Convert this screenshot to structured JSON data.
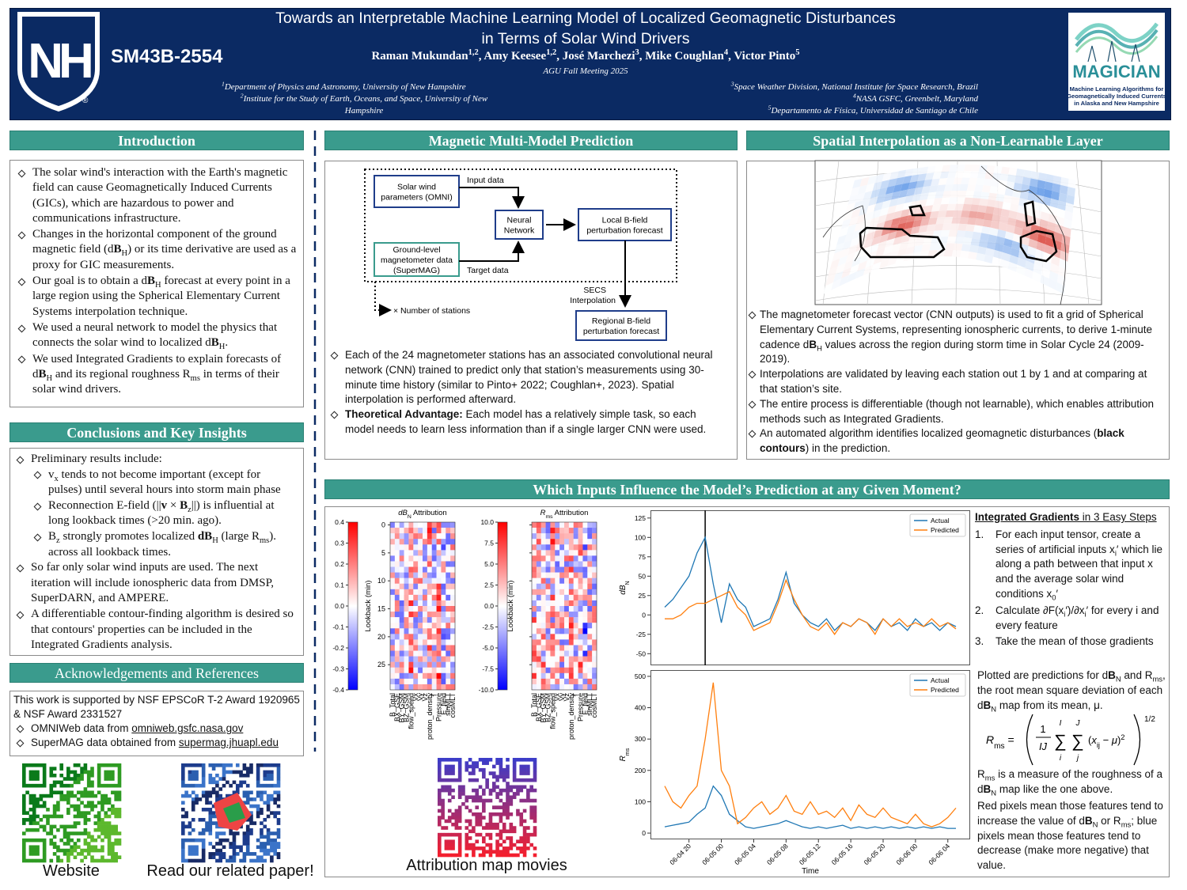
{
  "header": {
    "unh_logo": {
      "text": "NH",
      "mark": "®"
    },
    "code": "SM43B-2554",
    "title": [
      "Towards an Interpretable Machine Learning Model of Localized Geomagnetic Disturbances",
      "in Terms of Solar Wind Drivers"
    ],
    "authors": [
      "Raman Mukundan",
      {
        "sup": "1,2"
      },
      ", Amy Keesee",
      {
        "sup": "1,2"
      },
      ", José Marchezi",
      {
        "sup": "3"
      },
      ", Mike Coughlan",
      {
        "sup": "4"
      },
      ", Victor Pinto",
      {
        "sup": "5"
      }
    ],
    "meeting": "AGU Fall Meeting 2025",
    "affiliations_left": [
      [
        {
          "sup": "1"
        },
        "Department of Physics and Astronomy, University of New Hampshire"
      ],
      [
        {
          "sup": "2"
        },
        "Institute for the Study of Earth, Oceans, and Space, University of New Hampshire"
      ]
    ],
    "affiliations_right": [
      [
        {
          "sup": "3"
        },
        "Space Weather Division, National Institute for Space Research, Brazil"
      ],
      [
        {
          "sup": "4"
        },
        "NASA GSFC, Greenbelt, Maryland"
      ],
      [
        {
          "sup": "5"
        },
        "Departamento de Física, Universidad de Santiago de Chile"
      ]
    ],
    "magician_logo": {
      "name": "MAGICIAN",
      "lines": [
        "Machine Learning Algorithms for",
        "Geomagnetically Induced Currents",
        "in Alaska and New Hampshire"
      ]
    }
  },
  "introduction": {
    "heading": "Introduction",
    "bullets": [
      [
        "The solar wind's interaction with the Earth's magnetic field can cause Geomagnetically Induced Currents (GICs), which are hazardous to power and communications infrastructure."
      ],
      [
        "Changes in the horizontal component of the ground magnetic field (d",
        {
          "b": "B"
        },
        {
          "sub": "H"
        },
        ") or its time derivative are used as a proxy for GIC measurements."
      ],
      [
        "Our goal is to obtain a d",
        {
          "b": "B"
        },
        {
          "sub": "H"
        },
        " forecast at every point in a large region using the Spherical Elementary Current Systems interpolation technique."
      ],
      [
        "We used a neural network to model the physics that connects the solar wind to localized d",
        {
          "b": "B"
        },
        {
          "sub": "H"
        },
        "."
      ],
      [
        "We used Integrated Gradients to explain forecasts of d",
        {
          "b": "B"
        },
        {
          "sub": "H"
        },
        " and its regional roughness R",
        {
          "sub": "ms"
        },
        " in terms of their solar wind drivers."
      ]
    ]
  },
  "conclusions": {
    "heading": "Conclusions and Key Insights",
    "bullets": [
      {
        "runs": [
          "Preliminary results include:"
        ],
        "items": [
          [
            "v",
            {
              "sub": "x"
            },
            " tends to not become important (except for pulses) until several hours into storm main phase"
          ],
          [
            "Reconnection E-field (||",
            {
              "b": "v"
            },
            " × ",
            {
              "b": "B"
            },
            {
              "sub": "z"
            },
            "||) is influential at long lookback times (>20 min. ago)."
          ],
          [
            "B",
            {
              "sub": "z"
            },
            " strongly promotes localized ",
            {
              "b": "dB"
            },
            {
              "sub": "H"
            },
            " (large R",
            {
              "sub": "ms"
            },
            "). across all lookback times."
          ]
        ]
      },
      [
        "So far only solar wind inputs are used. The next iteration will include ionospheric data from DMSP, SuperDARN, and AMPERE."
      ],
      [
        "A differentiable contour-finding algorithm is desired so that contours' properties can be included in the Integrated Gradients analysis."
      ]
    ]
  },
  "acknowledgements": {
    "heading": "Acknowledgements and References",
    "text": "This work is supported by NSF EPSCoR T-2 Award 1920965 & NSF Award 2331527",
    "bullets": [
      [
        "OMNIWeb data from ",
        {
          "u": "omniweb.gsfc.nasa.gov"
        }
      ],
      [
        "SuperMAG data obtained from ",
        {
          "u": "supermag.jhuapl.edu"
        }
      ]
    ]
  },
  "qr_captions": [
    "Website",
    "Read our related paper!",
    "Attribution map movies"
  ],
  "multi_model": {
    "heading": "Magnetic Multi-Model Prediction",
    "diagram": {
      "solar_wind": [
        "Solar wind",
        "parameters (OMNI)"
      ],
      "input_data": "Input data",
      "network": [
        "Neural",
        "Network"
      ],
      "local": [
        "Local B-field",
        "perturbation forecast"
      ],
      "ground": [
        "Ground-level",
        "magnetometer data",
        "(SuperMAG)"
      ],
      "target_data": "Target data",
      "secs": [
        "SECS",
        "Interpolation"
      ],
      "stations": "× Number of stations",
      "regional": [
        "Regional B-field",
        "perturbation forecast"
      ]
    },
    "bullets": [
      [
        "Each of the 24 magnetometer stations has an associated convolutional neural network (CNN) trained to predict only that station’s measurements using 30-minute time history (similar to Pinto+ 2022; Coughlan+, 2023). Spatial interpolation is performed afterward."
      ],
      [
        {
          "b": "Theoretical Advantage:"
        },
        " Each model has a relatively simple task, so each model needs to learn less information than if a single larger CNN were used."
      ]
    ]
  },
  "spatial": {
    "heading": "Spatial Interpolation as a Non-Learnable Layer",
    "bullets": [
      [
        "The magnetometer forecast vector (CNN outputs) is used to fit a grid of Spherical Elementary Current Systems, representing ionospheric currents, to derive 1-minute cadence d",
        {
          "b": "B"
        },
        {
          "sub": "H"
        },
        " values across the region during storm time in Solar Cycle 24 (2009-2019)."
      ],
      [
        "Interpolations are validated by leaving each station out 1 by 1 and at comparing at that station’s site."
      ],
      [
        "The entire process is differentiable (though not learnable), which enables attribution methods such as Integrated Gradients."
      ],
      [
        "An automated algorithm identifies localized geomagnetic disturbances (",
        {
          "b": "black contours"
        },
        ") in the prediction."
      ]
    ]
  },
  "inputs": {
    "heading": "Which Inputs Influence the Model’s Prediction at any Given Moment?",
    "ig_heading": [
      {
        "bu": "Integrated Gradients"
      },
      {
        "u": " in 3 Easy Steps"
      }
    ],
    "steps": [
      {
        "n": "1.",
        "runs": [
          "For each input tensor, create a series of artificial inputs x",
          {
            "sub": "i"
          },
          "′ which lie along a path between that input x and the average solar wind conditions x",
          {
            "sub": "0"
          },
          "′"
        ]
      },
      {
        "n": "2.",
        "runs": [
          "Calculate ∂F(x",
          {
            "sub": "i"
          },
          "′)/∂x",
          {
            "sub": "i"
          },
          "′ for every i and every feature"
        ]
      },
      {
        "n": "3.",
        "runs": [
          "Take the mean of those gradients"
        ]
      }
    ],
    "para1": [
      "Plotted are predictions for d",
      {
        "b": "B"
      },
      {
        "sub": "N"
      },
      " and R",
      {
        "sub": "ms"
      },
      ", the root mean square deviation of each d",
      {
        "b": "B"
      },
      {
        "sub": "N"
      },
      " map from its mean, μ."
    ],
    "formula": {
      "lhs": [
        {
          "i": "R"
        },
        {
          "sub": "ms"
        },
        " ="
      ],
      "num": "1",
      "den": "IJ",
      "sums": [
        {
          "op": "∑",
          "top": "I",
          "bottom": "i"
        },
        {
          "op": "∑",
          "top": "J",
          "bottom": "j"
        }
      ],
      "term": [
        "(",
        {
          "i": "x"
        },
        {
          "sub": "ij"
        },
        " − ",
        {
          "i": "μ"
        },
        ")",
        {
          "sup": "2"
        }
      ],
      "power": "1/2"
    },
    "para2": [
      "R",
      {
        "sub": "ms"
      },
      " is a measure of the roughness of a d",
      {
        "b": "B"
      },
      {
        "sub": "N"
      },
      " map like the one above."
    ],
    "para3": [
      "Red pixels mean those features tend to increase the value of d",
      {
        "b": "B"
      },
      {
        "sub": "N"
      },
      " or R",
      {
        "sub": "ms"
      },
      "; blue pixels mean those features tend to decrease (make more negative) that value."
    ]
  },
  "figures": {
    "attribution": {
      "ylabel": "Lookback (min)",
      "ylim": [
        -0.5,
        29.5
      ],
      "yticks": [
        0,
        5,
        10,
        15,
        20,
        25
      ],
      "features": [
        "B_Total",
        "BX_GSE",
        "BY_GSM",
        "BZ_GSM",
        "flow_speed",
        "Vx",
        "Vy",
        "Vz",
        "proton_density",
        "T",
        "Pressure",
        "E_field",
        "sinMLT",
        "cosMLT"
      ],
      "maps": [
        {
          "title": [
            {
              "i": "dB"
            },
            {
              "sub": "N"
            },
            " Attribution"
          ],
          "colorbar": {
            "lim": [
              -0.4,
              0.4
            ],
            "ticks": [
              0.4,
              0.3,
              0.2,
              0.1,
              {
                "value": 0,
                "label": "0.0"
              },
              -0.1,
              -0.2,
              -0.3,
              -0.4
            ]
          }
        },
        {
          "title": [
            {
              "i": "R"
            },
            {
              "sub": "ms"
            },
            " Attribution"
          ],
          "colorbar": {
            "lim": [
              -10,
              10
            ],
            "ticks": [
              {
                "value": 10,
                "label": "10.0"
              },
              7.5,
              {
                "value": 5,
                "label": "5.0"
              },
              2.5,
              {
                "value": 0,
                "label": "0.0"
              },
              -2.5,
              {
                "value": -5,
                "label": "-5.0"
              },
              -7.5,
              {
                "value": -10,
                "label": "-10.0"
              }
            ]
          }
        }
      ]
    },
    "dbn": {
      "type": "line",
      "ylabel": [
        {
          "i": "dB"
        },
        {
          "sub": "N"
        }
      ],
      "x": [
        "06-04 17",
        "06-04 18",
        "06-04 19",
        "06-04 20",
        "06-04 21",
        "06-04 22",
        "06-04 23",
        "06-05 00",
        "06-05 01",
        "06-05 02",
        "06-05 03",
        "06-05 04",
        "06-05 05",
        "06-05 06",
        "06-05 07",
        "06-05 08",
        "06-05 09",
        "06-05 10",
        "06-05 11",
        "06-05 12",
        "06-05 13",
        "06-05 14",
        "06-05 15",
        "06-05 16",
        "06-05 17",
        "06-05 18",
        "06-05 19",
        "06-05 20",
        "06-05 21",
        "06-05 22",
        "06-05 23",
        "06-06 00",
        "06-06 01",
        "06-06 02",
        "06-06 03",
        "06-06 04",
        "06-06 05"
      ],
      "cursor": "06-04 22",
      "ylim": [
        -65,
        135
      ],
      "yticks": [
        -50,
        -25,
        0,
        25,
        50,
        75,
        100,
        125
      ],
      "legend": "upper right",
      "series": [
        {
          "name": "Actual",
          "color": "#1f77b4",
          "values": [
            10,
            20,
            35,
            50,
            80,
            100,
            40,
            -10,
            40,
            20,
            10,
            -15,
            -10,
            -5,
            20,
            55,
            15,
            0,
            -10,
            -15,
            -5,
            -20,
            -10,
            -15,
            -5,
            -10,
            -20,
            -5,
            -15,
            -10,
            -20,
            -5,
            -15,
            -10,
            -20,
            -10,
            -15
          ]
        },
        {
          "name": "Predicted",
          "color": "#ff7f0e",
          "values": [
            -5,
            -5,
            0,
            10,
            15,
            15,
            20,
            25,
            30,
            10,
            0,
            -20,
            -15,
            -10,
            15,
            45,
            20,
            0,
            -15,
            -20,
            -10,
            -25,
            -10,
            -15,
            -5,
            -10,
            -25,
            -5,
            -15,
            -5,
            -15,
            -10,
            -15,
            -5,
            -15,
            -10,
            -18
          ]
        }
      ]
    },
    "rms": {
      "type": "line",
      "ylabel": [
        {
          "i": "R"
        },
        {
          "sub": "ms"
        }
      ],
      "xlabel": "Time",
      "x": [
        "06-04 17",
        "06-04 18",
        "06-04 19",
        "06-04 20",
        "06-04 21",
        "06-04 22",
        "06-04 23",
        "06-05 00",
        "06-05 01",
        "06-05 02",
        "06-05 03",
        "06-05 04",
        "06-05 05",
        "06-05 06",
        "06-05 07",
        "06-05 08",
        "06-05 09",
        "06-05 10",
        "06-05 11",
        "06-05 12",
        "06-05 13",
        "06-05 14",
        "06-05 15",
        "06-05 16",
        "06-05 17",
        "06-05 18",
        "06-05 19",
        "06-05 20",
        "06-05 21",
        "06-05 22",
        "06-05 23",
        "06-06 00",
        "06-06 01",
        "06-06 02",
        "06-06 03",
        "06-06 04",
        "06-06 05"
      ],
      "xticks": [
        "06-04 20",
        "06-05 00",
        "06-05 04",
        "06-05 08",
        "06-05 12",
        "06-05 16",
        "06-05 20",
        "06-06 00",
        "06-06 04"
      ],
      "ylim": [
        -20,
        520
      ],
      "yticks": [
        0,
        100,
        200,
        300,
        400,
        500
      ],
      "legend": "upper right",
      "series": [
        {
          "name": "Actual",
          "color": "#1f77b4",
          "values": [
            20,
            25,
            30,
            35,
            60,
            80,
            150,
            120,
            60,
            40,
            20,
            15,
            20,
            25,
            30,
            40,
            30,
            20,
            15,
            20,
            15,
            20,
            25,
            15,
            20,
            15,
            20,
            15,
            20,
            15,
            20,
            15,
            20,
            15,
            20,
            15,
            15
          ]
        },
        {
          "name": "Predicted",
          "color": "#ff7f0e",
          "values": [
            150,
            100,
            80,
            120,
            150,
            300,
            480,
            200,
            150,
            30,
            50,
            80,
            100,
            60,
            80,
            120,
            70,
            60,
            100,
            60,
            70,
            50,
            80,
            40,
            90,
            60,
            50,
            80,
            50,
            40,
            30,
            60,
            30,
            20,
            30,
            50,
            80
          ]
        }
      ]
    }
  }
}
